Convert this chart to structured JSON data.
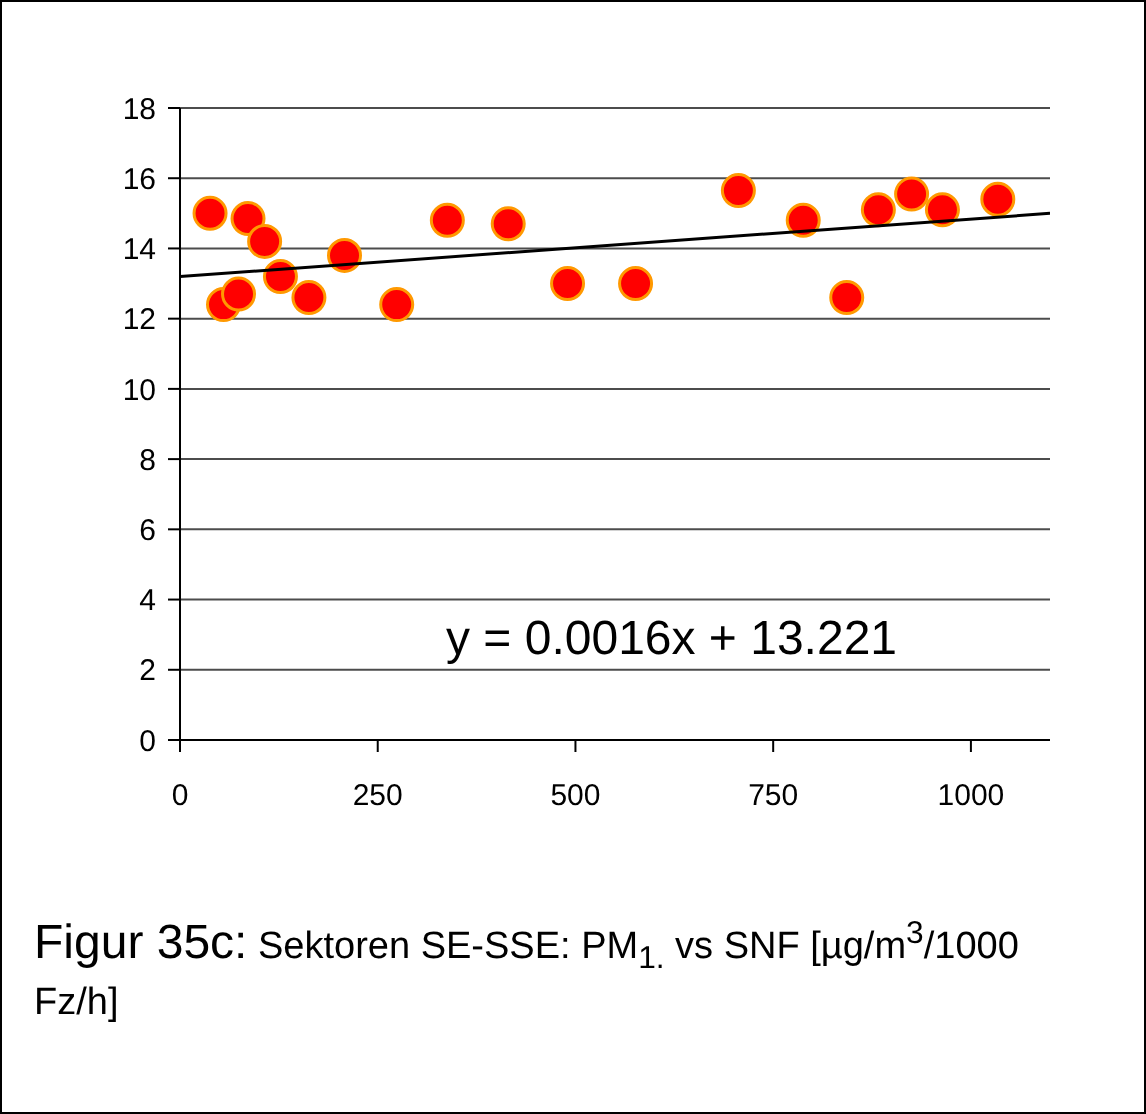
{
  "chart_data": {
    "type": "scatter",
    "title": "Figur 35c:",
    "subtitle": "Sektoren SE-SSE: PM$_{1.}$ vs SNF [µg/m$^{3}$/1000 Fz/h]",
    "annotations": [
      "y = 0.0016x + 13.221"
    ],
    "series": [
      {
        "color": "#ff0000",
        "marker": "circle",
        "x": [
          38,
          55,
          74,
          86,
          107,
          127,
          163,
          208,
          274,
          338,
          415,
          490,
          576,
          706,
          788,
          843,
          883,
          925,
          964,
          1034
        ],
        "values": [
          15.0,
          12.4,
          12.7,
          14.85,
          14.2,
          13.2,
          12.6,
          13.8,
          12.4,
          14.8,
          14.7,
          13.0,
          13.0,
          15.65,
          14.8,
          12.6,
          15.1,
          15.55,
          15.1,
          15.4
        ]
      },
      {
        "type": "line",
        "color": "#000000",
        "marker": "none",
        "x": [
          0,
          1100
        ],
        "values": [
          13.2,
          15.0
        ]
      }
    ],
    "xlim": [
      0,
      1100
    ],
    "xticks": [
      0,
      250,
      500,
      750,
      1000
    ],
    "ylim": [
      0,
      18
    ],
    "yticks": [
      0,
      2,
      4,
      6,
      8,
      10,
      12,
      14,
      16,
      18
    ],
    "grid": "y"
  }
}
